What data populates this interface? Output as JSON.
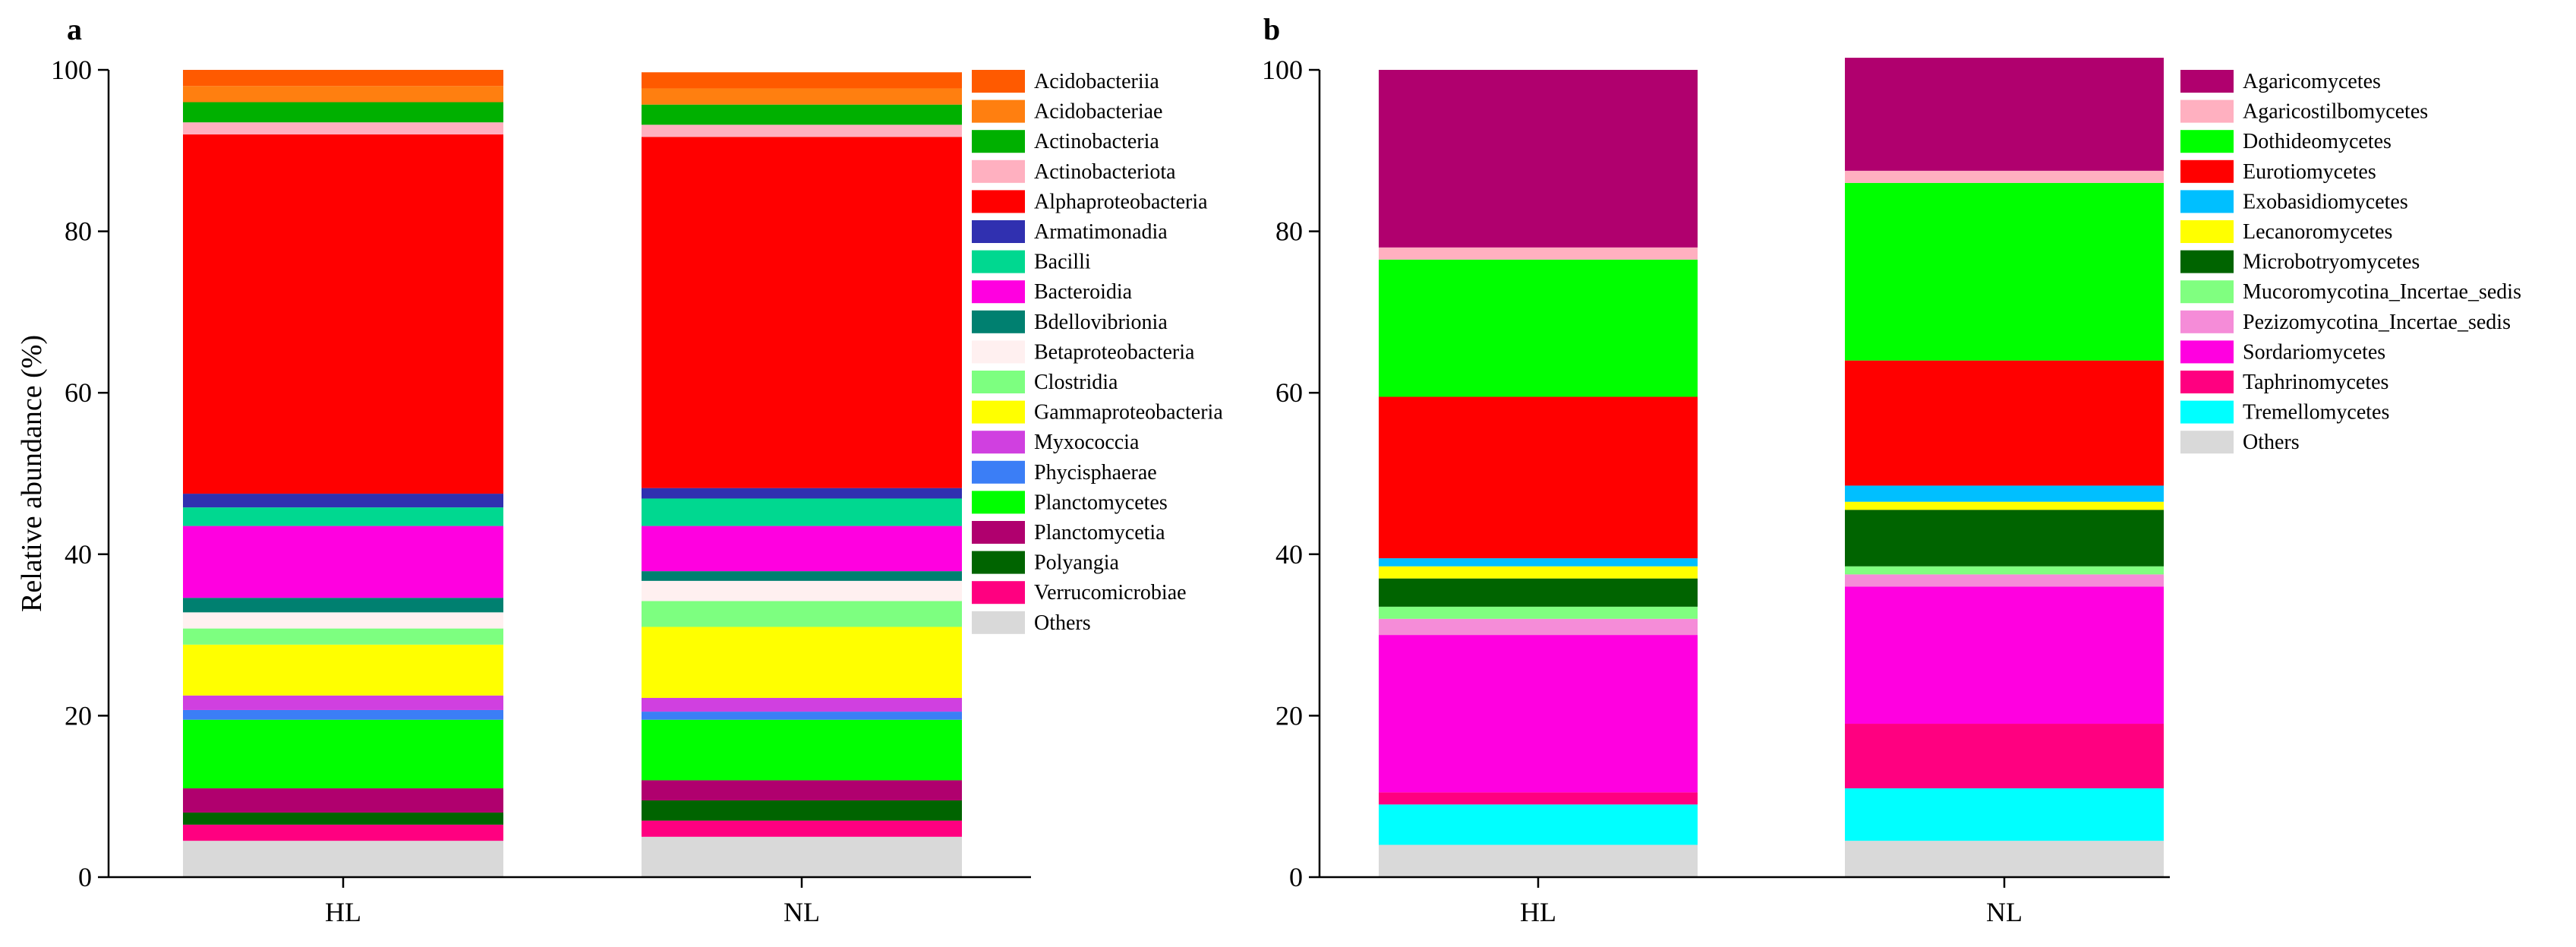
{
  "chart_data": [
    {
      "type": "bar",
      "stacked": true,
      "panel": "a",
      "ylabel": "Relative abundance (%)",
      "xlabel": "",
      "ylim": [
        0,
        100
      ],
      "yticks": [
        0,
        20,
        40,
        60,
        80,
        100
      ],
      "categories": [
        "HL",
        "NL"
      ],
      "legend_position": "right",
      "series": [
        {
          "name": "Others",
          "color": "#d9d9d9",
          "values": [
            4.5,
            5.0
          ]
        },
        {
          "name": "Verrucomicrobiae",
          "color": "#ff0080",
          "values": [
            2.0,
            2.0
          ]
        },
        {
          "name": "Polyangia",
          "color": "#006400",
          "values": [
            1.5,
            2.5
          ]
        },
        {
          "name": "Planctomycetia",
          "color": "#b0006e",
          "values": [
            3.0,
            2.5
          ]
        },
        {
          "name": "Planctomycetes",
          "color": "#00ff00",
          "values": [
            8.5,
            7.5
          ]
        },
        {
          "name": "Phycisphaerae",
          "color": "#3b7ef6",
          "values": [
            1.2,
            1.0
          ]
        },
        {
          "name": "Myxococcia",
          "color": "#d040e0",
          "values": [
            1.8,
            1.7
          ]
        },
        {
          "name": "Gammaproteobacteria",
          "color": "#ffff00",
          "values": [
            6.3,
            8.8
          ]
        },
        {
          "name": "Clostridia",
          "color": "#7dff80",
          "values": [
            2.0,
            3.2
          ]
        },
        {
          "name": "Betaproteobacteria",
          "color": "#fff0f0",
          "values": [
            2.0,
            2.5
          ]
        },
        {
          "name": "Bdellovibrionia",
          "color": "#008070",
          "values": [
            1.8,
            1.2
          ]
        },
        {
          "name": "Bacteroidia",
          "color": "#ff00e0",
          "values": [
            8.9,
            5.6
          ]
        },
        {
          "name": "Bacilli",
          "color": "#00d890",
          "values": [
            2.3,
            3.4
          ]
        },
        {
          "name": "Armatimonadia",
          "color": "#3030b0",
          "values": [
            1.7,
            1.3
          ]
        },
        {
          "name": "Alphaproteobacteria",
          "color": "#ff0000",
          "values": [
            44.5,
            43.5
          ]
        },
        {
          "name": "Actinobacteriota",
          "color": "#ffb0c0",
          "values": [
            1.5,
            1.5
          ]
        },
        {
          "name": "Actinobacteria",
          "color": "#00b000",
          "values": [
            2.5,
            2.5
          ]
        },
        {
          "name": "Acidobacteriae",
          "color": "#ff7f10",
          "values": [
            2.0,
            2.0
          ]
        },
        {
          "name": "Acidobacteriia",
          "color": "#ff5a00",
          "values": [
            2.0,
            2.0
          ]
        }
      ]
    },
    {
      "type": "bar",
      "stacked": true,
      "panel": "b",
      "ylabel": "",
      "xlabel": "",
      "ylim": [
        0,
        100
      ],
      "yticks": [
        0,
        20,
        40,
        60,
        80,
        100
      ],
      "categories": [
        "HL",
        "NL"
      ],
      "legend_position": "right",
      "series": [
        {
          "name": "Others",
          "color": "#d9d9d9",
          "values": [
            4.0,
            4.5
          ]
        },
        {
          "name": "Tremellomycetes",
          "color": "#00ffff",
          "values": [
            5.0,
            6.5
          ]
        },
        {
          "name": "Taphrinomycetes",
          "color": "#ff0080",
          "values": [
            1.5,
            8.0
          ]
        },
        {
          "name": "Sordariomycetes",
          "color": "#ff00e0",
          "values": [
            19.5,
            17.0
          ]
        },
        {
          "name": "Pezizomycotina_Incertae_sedis",
          "color": "#f58cd8",
          "values": [
            2.0,
            1.5
          ]
        },
        {
          "name": "Mucoromycotina_Incertae_sedis",
          "color": "#80ff80",
          "values": [
            1.5,
            1.0
          ]
        },
        {
          "name": "Microbotryomycetes",
          "color": "#006400",
          "values": [
            3.5,
            7.0
          ]
        },
        {
          "name": "Lecanoromycetes",
          "color": "#ffff00",
          "values": [
            1.5,
            1.0
          ]
        },
        {
          "name": "Exobasidiomycetes",
          "color": "#00bfff",
          "values": [
            1.0,
            2.0
          ]
        },
        {
          "name": "Eurotiomycetes",
          "color": "#ff0000",
          "values": [
            20.0,
            15.5
          ]
        },
        {
          "name": "Dothideomycetes",
          "color": "#00ff00",
          "values": [
            17.0,
            22.0
          ]
        },
        {
          "name": "Agaricostilbomycetes",
          "color": "#ffb0c0",
          "values": [
            1.5,
            1.5
          ]
        },
        {
          "name": "Agaricomycetes",
          "color": "#b0006e",
          "values": [
            22.0,
            14.0
          ]
        }
      ]
    }
  ]
}
